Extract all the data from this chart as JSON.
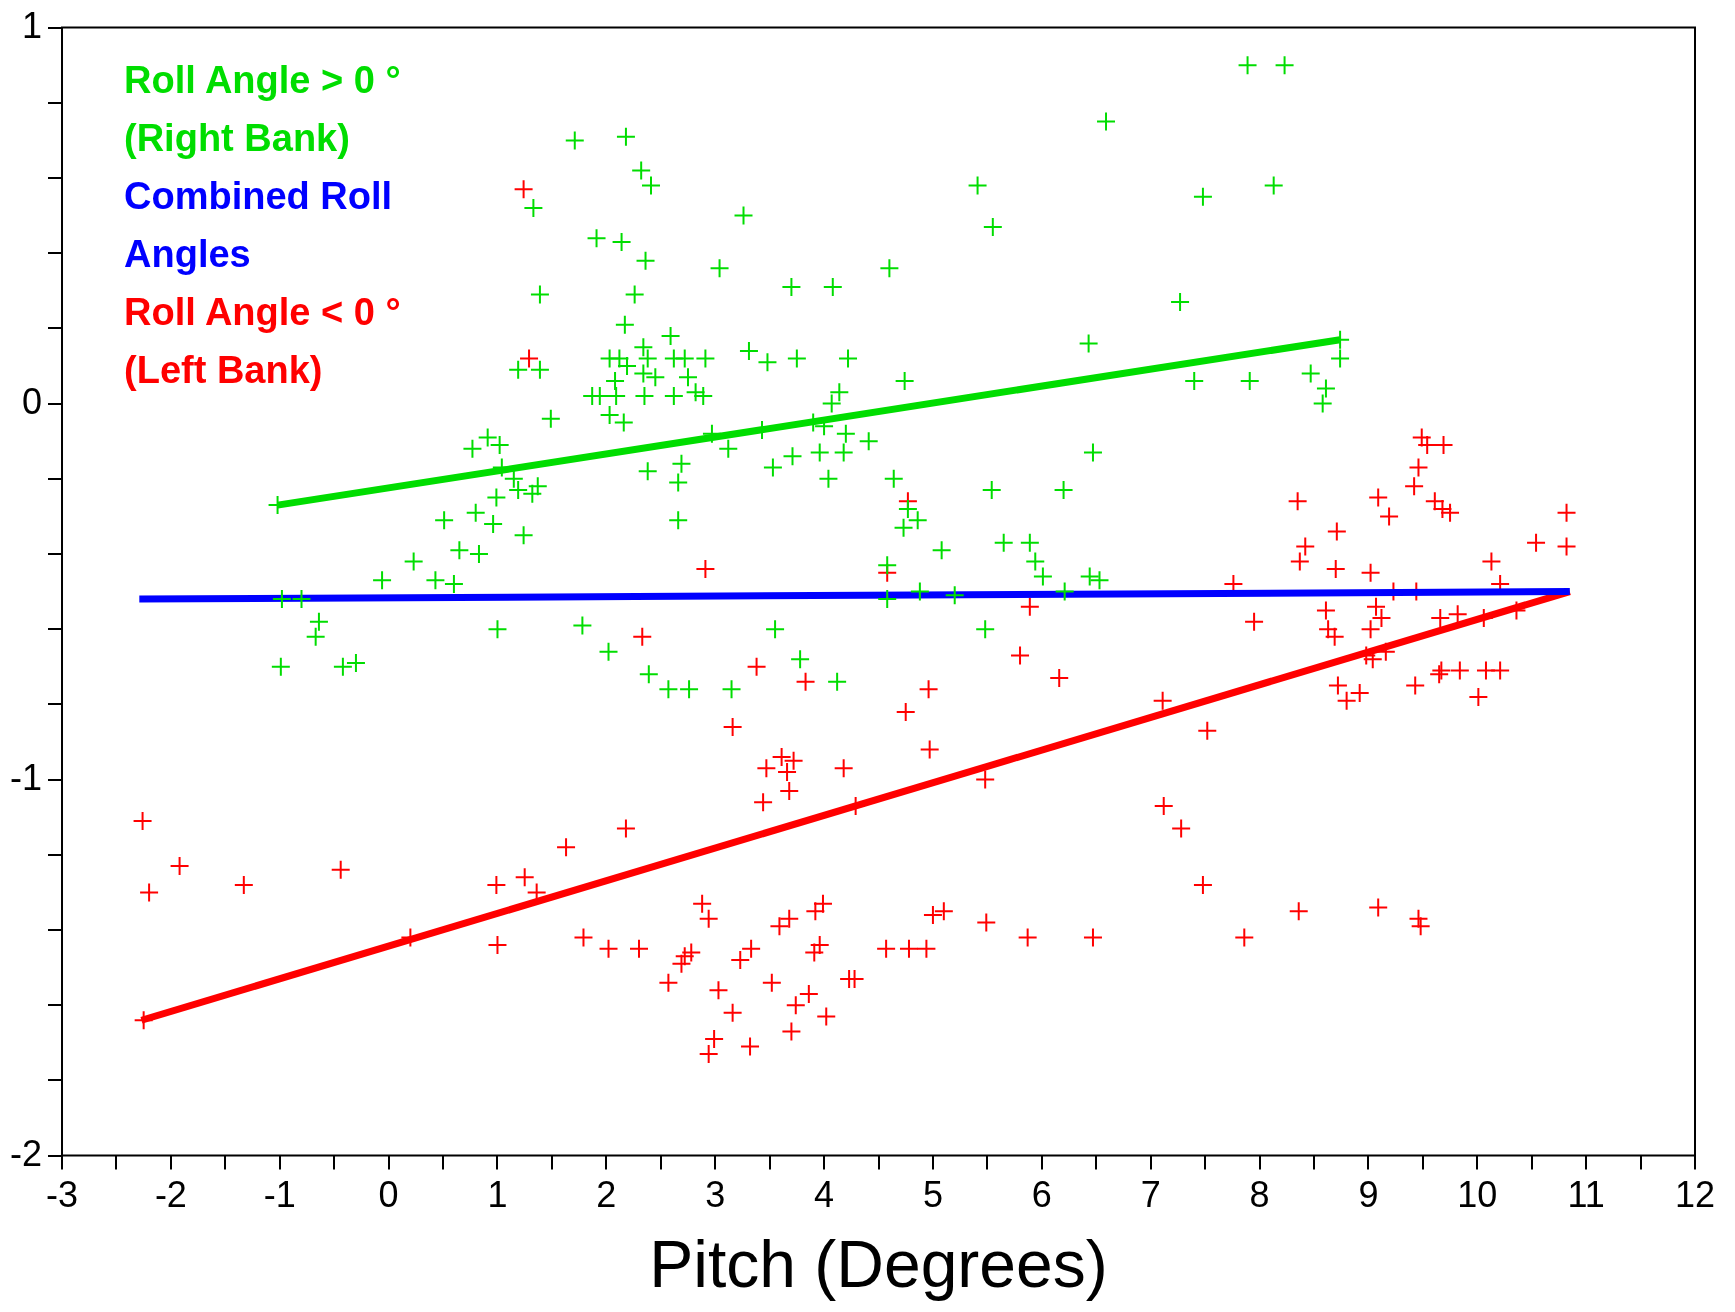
{
  "chart_data": {
    "type": "scatter",
    "xlabel": "Pitch (Degrees)",
    "xlim": [
      -3,
      12
    ],
    "ylim": [
      -2,
      1
    ],
    "xticks": [
      -3,
      {
        "value": -2.5,
        "label": null
      },
      -2,
      {
        "value": -1.5,
        "label": null
      },
      -1,
      {
        "value": -0.5,
        "label": null
      },
      0,
      {
        "value": 0.5,
        "label": null
      },
      1,
      {
        "value": 1.5,
        "label": null
      },
      2,
      {
        "value": 2.5,
        "label": null
      },
      3,
      {
        "value": 3.5,
        "label": null
      },
      4,
      {
        "value": 4.5,
        "label": null
      },
      5,
      {
        "value": 5.5,
        "label": null
      },
      6,
      {
        "value": 6.5,
        "label": null
      },
      7,
      {
        "value": 7.5,
        "label": null
      },
      8,
      {
        "value": 8.5,
        "label": null
      },
      9,
      {
        "value": 9.5,
        "label": null
      },
      10,
      {
        "value": 10.5,
        "label": null
      },
      11,
      {
        "value": 11.5,
        "label": null
      },
      12
    ],
    "yticks": [
      -2,
      {
        "value": -1.8,
        "label": null
      },
      {
        "value": -1.6,
        "label": null
      },
      {
        "value": -1.4,
        "label": null
      },
      {
        "value": -1.2,
        "label": null
      },
      -1,
      {
        "value": -0.8,
        "label": null
      },
      {
        "value": -0.6,
        "label": null
      },
      {
        "value": -0.4,
        "label": null
      },
      {
        "value": -0.2,
        "label": null
      },
      0,
      {
        "value": 0.2,
        "label": null
      },
      {
        "value": 0.4,
        "label": null
      },
      {
        "value": 0.6,
        "label": null
      },
      {
        "value": 0.8,
        "label": null
      },
      1
    ],
    "grid": false,
    "legend": "top left",
    "marker": "cross",
    "series": [
      {
        "name": "Roll Angle > 0 ° (Right Bank)",
        "color": "#00dd00",
        "x": [
          7.89,
          8.23,
          6.59,
          1.71,
          2.18,
          2.32,
          2.41,
          5.41,
          8.13,
          1.33,
          7.48,
          3.26,
          5.55,
          1.91,
          2.14,
          2.36,
          3.04,
          4.6,
          1.39,
          2.26,
          3.7,
          4.08,
          7.27,
          2.17,
          2.59,
          2.03,
          2.12,
          2.19,
          2.34,
          2.38,
          2.62,
          2.72,
          2.91,
          3.31,
          3.48,
          3.75,
          4.22,
          6.43,
          8.74,
          8.74,
          1.19,
          1.39,
          2.08,
          2.34,
          2.45,
          2.75,
          2.82,
          2.62,
          2.89,
          1.94,
          1.87,
          2.09,
          2.35,
          2.03,
          2.16,
          1.49,
          4.07,
          4.14,
          4.74,
          7.4,
          7.91,
          8.47,
          8.61,
          8.58,
          2.97,
          3.43,
          3.9,
          4,
          4.2,
          4.41,
          0.77,
          0.91,
          1.02,
          1.15,
          1.19,
          1.37,
          1.32,
          0.99,
          1.04,
          0.51,
          0.8,
          0.96,
          1.24,
          2.38,
          2.69,
          2.66,
          2.66,
          3.12,
          3.71,
          3.96,
          4.18,
          4.04,
          3.53,
          4.64,
          4.77,
          4.86,
          4.73,
          6.2,
          5.54,
          6.47,
          5.08,
          5.65,
          5.89,
          5.94,
          6.01,
          6.21,
          6.44,
          6.53,
          -0.06,
          0.23,
          0.43,
          0.6,
          0.65,
          0.83,
          4.58,
          4.58,
          4.88,
          5.2,
          1,
          1.78,
          2.02,
          2.39,
          2.57,
          2.76,
          3.15,
          3.55,
          3.78,
          4.12,
          5.48,
          -0.64,
          -0.67,
          -0.98,
          -0.8,
          -0.99,
          -0.42,
          -0.3,
          -1.02
        ],
        "values": [
          0.9,
          0.9,
          0.75,
          0.7,
          0.71,
          0.62,
          0.58,
          0.58,
          0.58,
          0.52,
          0.55,
          0.5,
          0.47,
          0.44,
          0.43,
          0.38,
          0.36,
          0.36,
          0.29,
          0.29,
          0.31,
          0.31,
          0.27,
          0.21,
          0.18,
          0.12,
          0.12,
          0.1,
          0.15,
          0.12,
          0.12,
          0.12,
          0.12,
          0.14,
          0.11,
          0.12,
          0.12,
          0.16,
          0.17,
          0.12,
          0.09,
          0.09,
          0.06,
          0.08,
          0.07,
          0.07,
          0.03,
          0.02,
          0.02,
          0.02,
          0.02,
          0.02,
          0.02,
          -0.03,
          -0.05,
          -0.04,
          0,
          0.03,
          0.06,
          0.06,
          0.06,
          0.08,
          0.04,
          0,
          -0.08,
          -0.07,
          -0.05,
          -0.06,
          -0.08,
          -0.1,
          -0.12,
          -0.09,
          -0.11,
          -0.2,
          -0.23,
          -0.22,
          -0.24,
          -0.25,
          -0.17,
          -0.31,
          -0.29,
          -0.32,
          -0.35,
          -0.18,
          -0.16,
          -0.21,
          -0.31,
          -0.12,
          -0.14,
          -0.13,
          -0.13,
          -0.2,
          -0.17,
          -0.2,
          -0.28,
          -0.31,
          -0.33,
          -0.23,
          -0.23,
          -0.13,
          -0.39,
          -0.37,
          -0.37,
          -0.42,
          -0.46,
          -0.5,
          -0.46,
          -0.47,
          -0.47,
          -0.42,
          -0.47,
          -0.48,
          -0.39,
          -0.4,
          -0.43,
          -0.52,
          -0.5,
          -0.51,
          -0.6,
          -0.59,
          -0.66,
          -0.72,
          -0.76,
          -0.76,
          -0.76,
          -0.6,
          -0.68,
          -0.74,
          -0.6,
          -0.58,
          -0.62,
          -0.52,
          -0.52,
          -0.7,
          -0.7,
          -0.69,
          -0.27
        ]
      },
      {
        "type": "line",
        "marker": "none",
        "name": "Combined Roll Angles",
        "color": "#0000ff",
        "x": [
          -2.29,
          10.85
        ],
        "values": [
          -0.52,
          -0.5
        ]
      },
      {
        "name": "Roll Angle < 0 ° (Left Bank)",
        "color": "#ff0000",
        "x": [
          1.24,
          1.29,
          2.91,
          4.58,
          4.77,
          2.33,
          3.38,
          3.83,
          3.16,
          3.72,
          3.47,
          3.61,
          3.66,
          3.68,
          3.44,
          4.18,
          4.75,
          4.96,
          4.97,
          5.48,
          7.12,
          7.28,
          7.52,
          7.11,
          5.8,
          6.16,
          5.89,
          7.95,
          7.76,
          8.42,
          8.37,
          8.7,
          8.71,
          9.02,
          8.35,
          9.09,
          9.19,
          9.42,
          9.46,
          9.49,
          9.54,
          9.69,
          9.61,
          9.68,
          9.75,
          10.54,
          10.82,
          10.82,
          10.13,
          10.21,
          10.36,
          10.06,
          9.82,
          9.66,
          9.44,
          9.07,
          9.23,
          9.12,
          8.61,
          8.69,
          8.63,
          9.02,
          8.98,
          9.04,
          9.16,
          8.72,
          8.8,
          8.92,
          9.43,
          9.65,
          9.67,
          9.84,
          10.01,
          10.08,
          10.21,
          -2.26,
          -2.2,
          -1.92,
          -1.33,
          -0.44,
          0.2,
          0.99,
          1,
          1.25,
          1.36,
          1.63,
          2.18,
          1.79,
          2.02,
          2.3,
          2.57,
          2.69,
          2.72,
          2.78,
          2.88,
          2.94,
          3.03,
          3.16,
          2.99,
          2.94,
          3.32,
          3.23,
          3.33,
          3.52,
          3.59,
          3.68,
          3.74,
          3.7,
          3.86,
          3.91,
          3.96,
          3.92,
          3.99,
          4.02,
          4.23,
          4.28,
          4.57,
          4.78,
          4.94,
          5,
          5.1,
          5.49,
          5.87,
          6.47,
          7.86,
          8.36,
          9.09,
          9.46,
          9.48,
          7.48,
          -2.25,
          4.29
        ],
        "values": [
          0.57,
          0.12,
          -0.44,
          -0.45,
          -0.26,
          -0.62,
          -0.7,
          -0.74,
          -0.86,
          -0.95,
          -0.97,
          -0.94,
          -0.98,
          -1.03,
          -1.06,
          -0.97,
          -0.82,
          -0.76,
          -0.92,
          -1,
          -1.07,
          -1.13,
          -0.87,
          -0.79,
          -0.67,
          -0.73,
          -0.54,
          -0.58,
          -0.48,
          -0.38,
          -0.42,
          -0.44,
          -0.34,
          -0.45,
          -0.26,
          -0.25,
          -0.3,
          -0.22,
          -0.17,
          -0.09,
          -0.11,
          -0.11,
          -0.26,
          -0.28,
          -0.29,
          -0.37,
          -0.38,
          -0.29,
          -0.42,
          -0.48,
          -0.55,
          -0.57,
          -0.56,
          -0.57,
          -0.5,
          -0.54,
          -0.5,
          -0.57,
          -0.55,
          -0.62,
          -0.6,
          -0.6,
          -0.67,
          -0.68,
          -0.66,
          -0.75,
          -0.79,
          -0.77,
          -0.75,
          -0.72,
          -0.71,
          -0.71,
          -0.78,
          -0.71,
          -0.71,
          -1.11,
          -1.3,
          -1.23,
          -1.28,
          -1.24,
          -1.42,
          -1.28,
          -1.44,
          -1.26,
          -1.3,
          -1.18,
          -1.13,
          -1.42,
          -1.45,
          -1.45,
          -1.54,
          -1.49,
          -1.47,
          -1.46,
          -1.33,
          -1.37,
          -1.56,
          -1.62,
          -1.69,
          -1.73,
          -1.71,
          -1.48,
          -1.45,
          -1.54,
          -1.39,
          -1.37,
          -1.6,
          -1.67,
          -1.57,
          -1.46,
          -1.44,
          -1.35,
          -1.33,
          -1.63,
          -1.53,
          -1.53,
          -1.45,
          -1.45,
          -1.45,
          -1.36,
          -1.35,
          -1.38,
          -1.42,
          -1.42,
          -1.42,
          -1.35,
          -1.34,
          -1.37,
          -1.39,
          -1.28,
          -1.64,
          -1.07
        ]
      },
      {
        "type": "line",
        "marker": "none",
        "color": "#00dd00",
        "x": [
          -1.02,
          8.74
        ],
        "values": [
          -0.27,
          0.17
        ]
      },
      {
        "type": "line",
        "marker": "none",
        "color": "#ff0000",
        "x": [
          -2.27,
          10.85
        ],
        "values": [
          -1.64,
          -0.5
        ]
      }
    ]
  }
}
